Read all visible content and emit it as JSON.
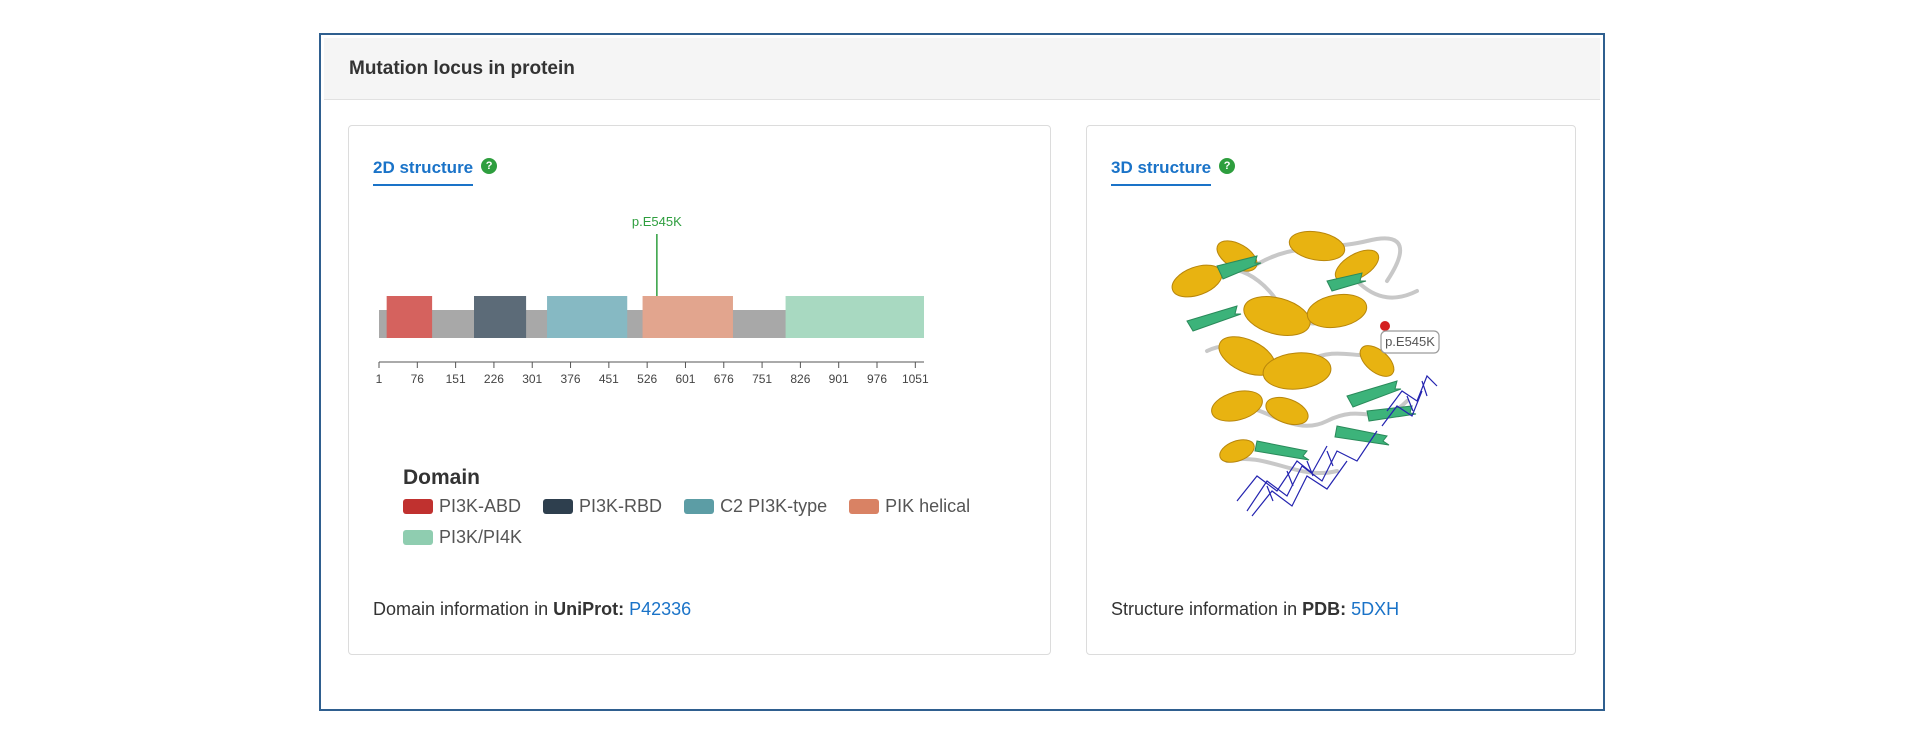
{
  "panel": {
    "title": "Mutation locus in protein"
  },
  "card_2d": {
    "heading": "2D structure",
    "help_icon": "help-icon",
    "info_prefix": "Domain information in ",
    "info_source": "UniProt:",
    "info_link": "P42336"
  },
  "card_3d": {
    "heading": "3D structure",
    "help_icon": "help-icon",
    "info_prefix": "Structure information in ",
    "info_source": "PDB:",
    "info_link": "5DXH",
    "mutation_label": "p.E545K"
  },
  "chart_data": {
    "type": "bar",
    "mutation": {
      "label": "p.E545K",
      "position": 545
    },
    "protein_length": 1068,
    "xlim": [
      1,
      1068
    ],
    "ticks": [
      1,
      76,
      151,
      226,
      301,
      376,
      451,
      526,
      601,
      676,
      751,
      826,
      901,
      976,
      1051
    ],
    "domains": [
      {
        "name": "PI3K-ABD",
        "start": 16,
        "end": 105,
        "color": "#d5625e"
      },
      {
        "name": "PI3K-RBD",
        "start": 187,
        "end": 289,
        "color": "#5c6b78"
      },
      {
        "name": "C2 PI3K-type",
        "start": 330,
        "end": 487,
        "color": "#86b9c3"
      },
      {
        "name": "PIK helical",
        "start": 517,
        "end": 694,
        "color": "#e2a58e"
      },
      {
        "name": "PI3K/PI4K",
        "start": 797,
        "end": 1068,
        "color": "#a8d9c1"
      }
    ],
    "legend": {
      "title": "Domain",
      "items": [
        {
          "name": "PI3K-ABD",
          "color": "#c0312f"
        },
        {
          "name": "PI3K-RBD",
          "color": "#2e3f4e"
        },
        {
          "name": "C2 PI3K-type",
          "color": "#5c9da5"
        },
        {
          "name": "PIK helical",
          "color": "#d98264"
        },
        {
          "name": "PI3K/PI4K",
          "color": "#8fcdb0"
        }
      ]
    },
    "colors": {
      "backbone": "#a8a8a8",
      "mutation": "#2e9e3e",
      "axis": "#555555"
    }
  }
}
